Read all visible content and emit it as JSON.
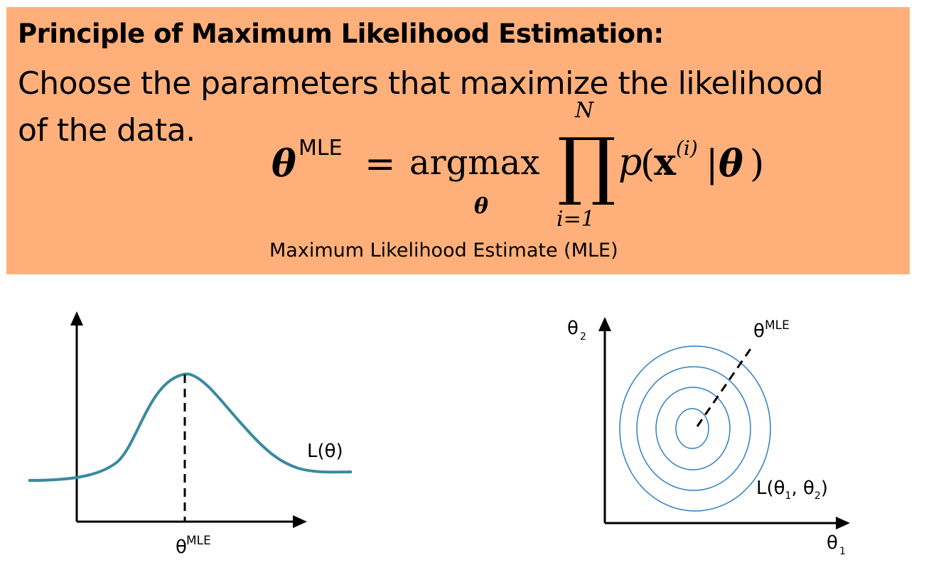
{
  "banner": {
    "heading": "Principle of Maximum Likelihood Estimation:",
    "body_line1": "Choose the parameters that maximize the likelihood",
    "body_line2": "of the data.",
    "caption": "Maximum Likelihood Estimate (MLE)",
    "color": "#ffb07a"
  },
  "formula": {
    "theta": "θ",
    "superscript": "MLE",
    "equals": "=",
    "argmax": "argmax",
    "argmax_sub": "θ",
    "product": "∏",
    "upper": "N",
    "lower": "i=1",
    "p": "p",
    "open": "(",
    "x": "x",
    "x_sup": "(i)",
    "bar": "|",
    "theta2": "θ",
    "close": ")"
  },
  "left_plot": {
    "curve_label": "L(θ)",
    "x_marker_base": "θ",
    "x_marker_sup": "MLE",
    "curve_color": "#3a8a9f"
  },
  "right_plot": {
    "y_axis_label": "θ",
    "y_axis_sub": "2",
    "x_axis_label": "θ",
    "x_axis_sub": "1",
    "mle_base": "θ",
    "mle_sup": "MLE",
    "contour_label_prefix": "L(θ",
    "contour_label_sub1": "1",
    "contour_label_mid": ", θ",
    "contour_label_sub2": "2",
    "contour_label_suffix": ")",
    "contour_color": "#2e7fc0"
  }
}
